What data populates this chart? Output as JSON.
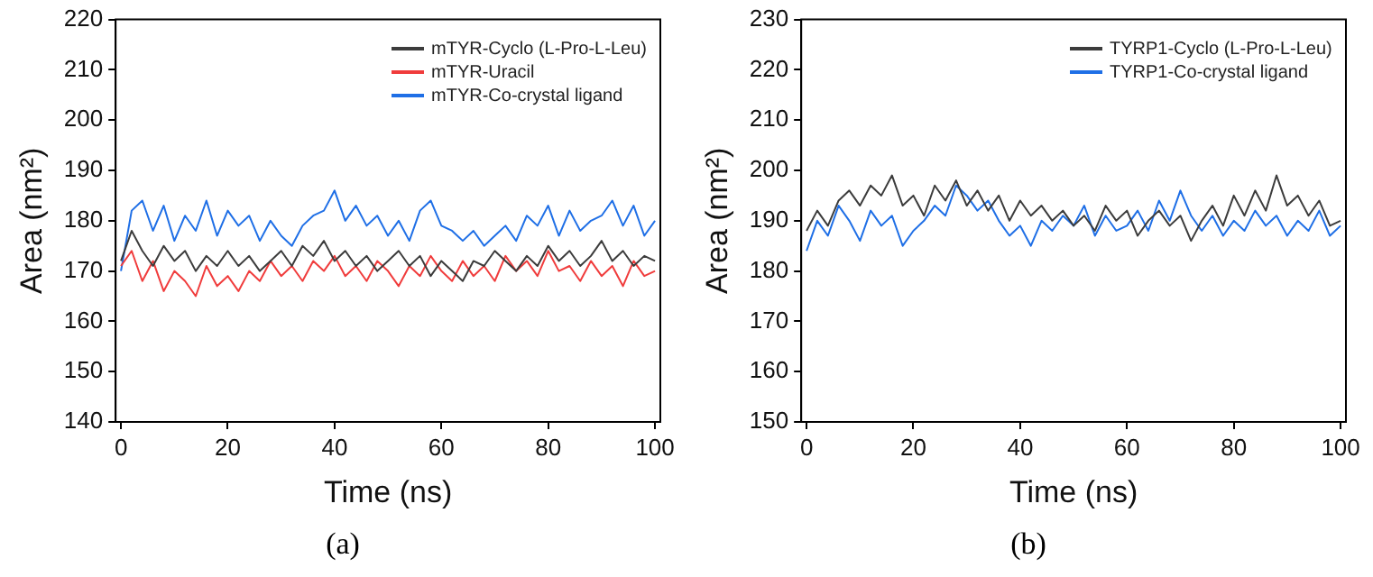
{
  "chart_data": [
    {
      "type": "line",
      "xlabel": "Time (ns)",
      "ylabel": "Area (nm²)",
      "annotations": [
        "(a)"
      ],
      "x": [
        0,
        2,
        4,
        6,
        8,
        10,
        12,
        14,
        16,
        18,
        20,
        22,
        24,
        26,
        28,
        30,
        32,
        34,
        36,
        38,
        40,
        42,
        44,
        46,
        48,
        50,
        52,
        54,
        56,
        58,
        60,
        62,
        64,
        66,
        68,
        70,
        72,
        74,
        76,
        78,
        80,
        82,
        84,
        86,
        88,
        90,
        92,
        94,
        96,
        98,
        100
      ],
      "xlim": [
        -1,
        101
      ],
      "xticks": [
        0,
        20,
        40,
        60,
        80,
        100
      ],
      "ylim": [
        140,
        220
      ],
      "yticks": [
        140,
        150,
        160,
        170,
        180,
        190,
        200,
        210,
        220
      ],
      "grid": false,
      "legend": "top right",
      "series": [
        {
          "name": "mTYR-Cyclo (L-Pro-L-Leu)",
          "color": "#3c3c3c",
          "values": [
            172,
            178,
            174,
            171,
            175,
            172,
            174,
            170,
            173,
            171,
            174,
            171,
            173,
            170,
            172,
            174,
            171,
            175,
            173,
            176,
            172,
            174,
            171,
            173,
            170,
            172,
            174,
            171,
            173,
            169,
            172,
            170,
            168,
            172,
            171,
            174,
            172,
            170,
            173,
            171,
            175,
            172,
            174,
            171,
            173,
            176,
            172,
            174,
            171,
            173,
            172
          ]
        },
        {
          "name": "mTYR-Uracil",
          "color": "#f03c3c",
          "values": [
            171,
            174,
            168,
            172,
            166,
            170,
            168,
            165,
            171,
            167,
            169,
            166,
            170,
            168,
            172,
            169,
            171,
            168,
            172,
            170,
            173,
            169,
            171,
            168,
            172,
            170,
            167,
            171,
            169,
            173,
            170,
            168,
            172,
            169,
            171,
            168,
            173,
            170,
            172,
            169,
            174,
            170,
            171,
            168,
            172,
            169,
            171,
            167,
            172,
            169,
            170
          ]
        },
        {
          "name": "mTYR-Co-crystal ligand",
          "color": "#1f6fe6",
          "values": [
            170,
            182,
            184,
            178,
            183,
            176,
            181,
            178,
            184,
            177,
            182,
            179,
            181,
            176,
            180,
            177,
            175,
            179,
            181,
            182,
            186,
            180,
            183,
            179,
            181,
            177,
            180,
            176,
            182,
            184,
            179,
            178,
            176,
            178,
            175,
            177,
            179,
            176,
            181,
            179,
            183,
            177,
            182,
            178,
            180,
            181,
            184,
            179,
            183,
            177,
            180
          ]
        }
      ]
    },
    {
      "type": "line",
      "xlabel": "Time (ns)",
      "ylabel": "Area (nm²)",
      "annotations": [
        "(b)"
      ],
      "x": [
        0,
        2,
        4,
        6,
        8,
        10,
        12,
        14,
        16,
        18,
        20,
        22,
        24,
        26,
        28,
        30,
        32,
        34,
        36,
        38,
        40,
        42,
        44,
        46,
        48,
        50,
        52,
        54,
        56,
        58,
        60,
        62,
        64,
        66,
        68,
        70,
        72,
        74,
        76,
        78,
        80,
        82,
        84,
        86,
        88,
        90,
        92,
        94,
        96,
        98,
        100
      ],
      "xlim": [
        -1,
        101
      ],
      "xticks": [
        0,
        20,
        40,
        60,
        80,
        100
      ],
      "ylim": [
        150,
        230
      ],
      "yticks": [
        150,
        160,
        170,
        180,
        190,
        200,
        210,
        220,
        230
      ],
      "grid": false,
      "legend": "top right",
      "series": [
        {
          "name": "TYRP1-Cyclo (L-Pro-L-Leu)",
          "color": "#3c3c3c",
          "values": [
            188,
            192,
            189,
            194,
            196,
            193,
            197,
            195,
            199,
            193,
            195,
            191,
            197,
            194,
            198,
            193,
            196,
            192,
            195,
            190,
            194,
            191,
            193,
            190,
            192,
            189,
            191,
            188,
            193,
            190,
            192,
            187,
            190,
            192,
            189,
            191,
            186,
            190,
            193,
            189,
            195,
            191,
            196,
            192,
            199,
            193,
            195,
            191,
            194,
            189,
            190
          ]
        },
        {
          "name": "TYRP1-Co-crystal ligand",
          "color": "#1f6fe6",
          "values": [
            184,
            190,
            187,
            193,
            190,
            186,
            192,
            189,
            191,
            185,
            188,
            190,
            193,
            191,
            197,
            195,
            192,
            194,
            190,
            187,
            189,
            185,
            190,
            188,
            191,
            189,
            193,
            187,
            191,
            188,
            189,
            192,
            188,
            194,
            190,
            196,
            191,
            188,
            191,
            187,
            190,
            188,
            192,
            189,
            191,
            187,
            190,
            188,
            192,
            187,
            189
          ]
        }
      ]
    }
  ]
}
